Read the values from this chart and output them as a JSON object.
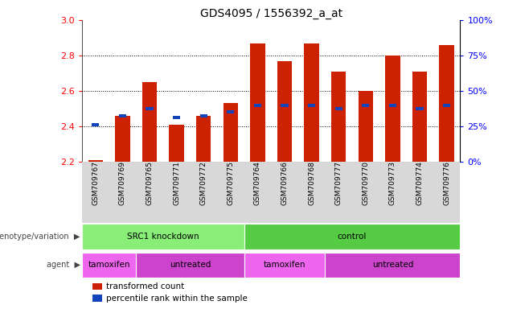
{
  "title": "GDS4095 / 1556392_a_at",
  "samples": [
    "GSM709767",
    "GSM709769",
    "GSM709765",
    "GSM709771",
    "GSM709772",
    "GSM709775",
    "GSM709764",
    "GSM709766",
    "GSM709768",
    "GSM709777",
    "GSM709770",
    "GSM709773",
    "GSM709774",
    "GSM709776"
  ],
  "red_values": [
    2.21,
    2.46,
    2.65,
    2.41,
    2.46,
    2.53,
    2.87,
    2.77,
    2.87,
    2.71,
    2.6,
    2.8,
    2.71,
    2.86
  ],
  "blue_values": [
    2.41,
    2.46,
    2.5,
    2.45,
    2.46,
    2.48,
    2.52,
    2.52,
    2.52,
    2.5,
    2.52,
    2.52,
    2.5,
    2.52
  ],
  "ymin": 2.2,
  "ymax": 3.0,
  "yticks_left": [
    2.2,
    2.4,
    2.6,
    2.8,
    3.0
  ],
  "yticks_right_pct": [
    0,
    25,
    50,
    75,
    100
  ],
  "bar_color": "#cc2200",
  "blue_color": "#1144bb",
  "bg_color": "#ffffff",
  "groups": [
    {
      "label": "SRC1 knockdown",
      "start": 0,
      "end": 6,
      "color": "#88ee77"
    },
    {
      "label": "control",
      "start": 6,
      "end": 14,
      "color": "#55cc44"
    }
  ],
  "agents": [
    {
      "label": "tamoxifen",
      "start": 0,
      "end": 2,
      "color": "#ee66ee"
    },
    {
      "label": "untreated",
      "start": 2,
      "end": 6,
      "color": "#cc44cc"
    },
    {
      "label": "tamoxifen",
      "start": 6,
      "end": 9,
      "color": "#ee66ee"
    },
    {
      "label": "untreated",
      "start": 9,
      "end": 14,
      "color": "#cc44cc"
    }
  ],
  "genotype_label": "genotype/variation",
  "agent_label": "agent",
  "legend_items": [
    {
      "label": "transformed count",
      "color": "#cc2200"
    },
    {
      "label": "percentile rank within the sample",
      "color": "#1144bb"
    }
  ],
  "sample_box_color": "#d8d8d8",
  "gridline_color": "black"
}
